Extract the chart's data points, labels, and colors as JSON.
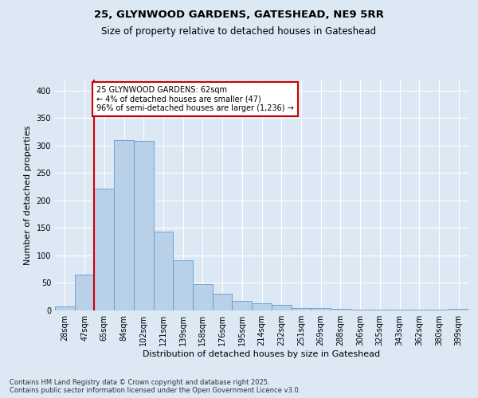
{
  "title_line1": "25, GLYNWOOD GARDENS, GATESHEAD, NE9 5RR",
  "title_line2": "Size of property relative to detached houses in Gateshead",
  "xlabel": "Distribution of detached houses by size in Gateshead",
  "ylabel": "Number of detached properties",
  "categories": [
    "28sqm",
    "47sqm",
    "65sqm",
    "84sqm",
    "102sqm",
    "121sqm",
    "139sqm",
    "158sqm",
    "176sqm",
    "195sqm",
    "214sqm",
    "232sqm",
    "251sqm",
    "269sqm",
    "288sqm",
    "306sqm",
    "325sqm",
    "343sqm",
    "362sqm",
    "380sqm",
    "399sqm"
  ],
  "bar_values": [
    7,
    65,
    222,
    310,
    308,
    143,
    91,
    48,
    30,
    18,
    13,
    10,
    5,
    4,
    3,
    2,
    2,
    2,
    2,
    2,
    3
  ],
  "bar_color": "#b8d0e8",
  "bar_edge_color": "#6699cc",
  "vline_x": 1.5,
  "vline_color": "#cc0000",
  "annotation_text": "25 GLYNWOOD GARDENS: 62sqm\n← 4% of detached houses are smaller (47)\n96% of semi-detached houses are larger (1,236) →",
  "annotation_box_color": "#ffffff",
  "annotation_box_edge_color": "#cc0000",
  "ylim": [
    0,
    420
  ],
  "yticks": [
    0,
    50,
    100,
    150,
    200,
    250,
    300,
    350,
    400
  ],
  "background_color": "#dde8f5",
  "plot_background": "#dde8f5",
  "grid_color": "#ffffff",
  "footer_text": "Contains HM Land Registry data © Crown copyright and database right 2025.\nContains public sector information licensed under the Open Government Licence v3.0.",
  "title_fontsize": 9.5,
  "subtitle_fontsize": 8.5,
  "tick_fontsize": 7,
  "label_fontsize": 8,
  "annotation_fontsize": 7,
  "footer_fontsize": 6
}
